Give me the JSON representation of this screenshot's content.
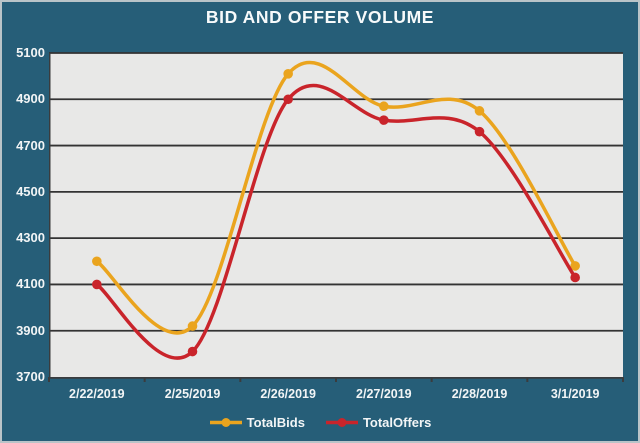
{
  "title": "BID AND OFFER VOLUME",
  "colors": {
    "frame_background": "#265E78",
    "frame_border": "#b9c4c8",
    "plot_background": "#E8E8E7",
    "gridline": "#333333",
    "axis": "#3a3c3e",
    "label_text": "#f2f5f6",
    "totalbids": "#EAA41E",
    "totaloffers": "#C9242B"
  },
  "chart_data": {
    "type": "line",
    "title": "BID AND OFFER VOLUME",
    "categories": [
      "2/22/2019",
      "2/25/2019",
      "2/26/2019",
      "2/27/2019",
      "2/28/2019",
      "3/1/2019"
    ],
    "series": [
      {
        "name": "TotalBids",
        "color": "#EAA41E",
        "values": [
          4200,
          3920,
          5010,
          4870,
          4850,
          4180
        ]
      },
      {
        "name": "TotalOffers",
        "color": "#C9242B",
        "values": [
          4100,
          3810,
          4900,
          4810,
          4760,
          4130
        ]
      }
    ],
    "xlabel": "",
    "ylabel": "",
    "ylim": [
      3700,
      5100
    ],
    "yticks": [
      3700,
      3900,
      4100,
      4300,
      4500,
      4700,
      4900,
      5100
    ],
    "grid": "horizontal",
    "smooth": true,
    "marker": "circle",
    "legend_position": "bottom"
  }
}
